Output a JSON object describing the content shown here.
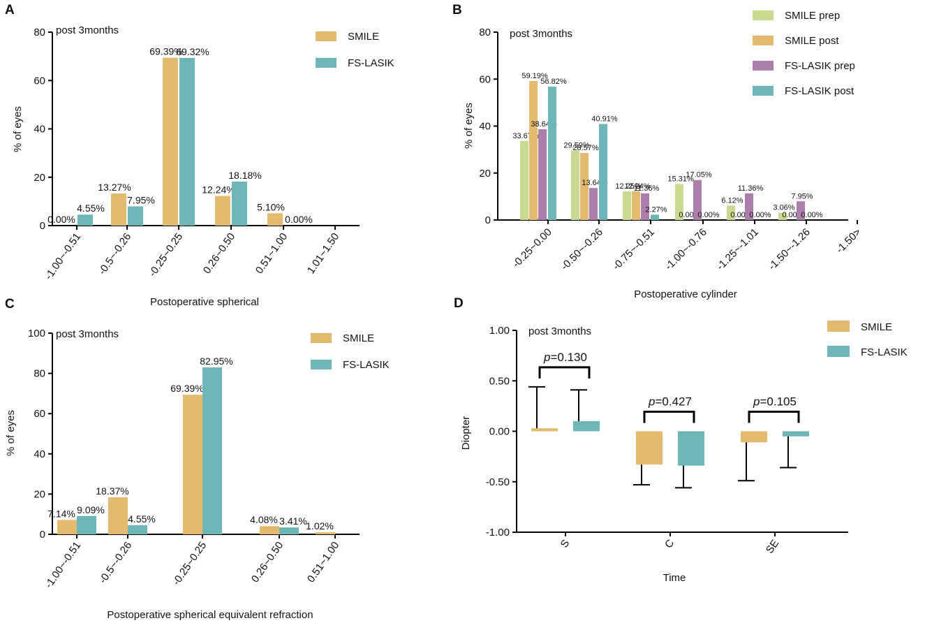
{
  "colors": {
    "smile": "#E3BA6E",
    "fslasik": "#6CB6B8",
    "smile_prep": "#C9D98F",
    "smile_post": "#E3BA6E",
    "fslasik_prep": "#AC7EA9",
    "fslasik_post": "#6CB6B8",
    "axis": "#000000"
  },
  "chart_data": [
    {
      "id": "A",
      "panel_label": "A",
      "type": "bar",
      "title": "post 3months",
      "xlabel": "Postoperative spherical",
      "ylabel": "% of eyes",
      "ylim": [
        0,
        80
      ],
      "yticks": [
        "0",
        "20",
        "40",
        "60",
        "80"
      ],
      "categories": [
        "-1.00~-0.51",
        "-0.5~-0.26",
        "-0.25~0.25",
        "0.26~0.50",
        "0.51~1.00",
        "1.01~1.50"
      ],
      "legend_position": "top-right",
      "series": [
        {
          "name": "SMILE",
          "color_key": "smile",
          "values": [
            0.0,
            13.27,
            69.39,
            12.24,
            5.1,
            null
          ],
          "labels": [
            "0.00%",
            "13.27%",
            "69.39%",
            "12.24%",
            "5.10%",
            null
          ]
        },
        {
          "name": "FS-LASIK",
          "color_key": "fslasik",
          "values": [
            4.55,
            7.95,
            69.32,
            18.18,
            0.0,
            null
          ],
          "labels": [
            "4.55%",
            "7.95%",
            "69.32%",
            "18.18%",
            "0.00%",
            null
          ]
        }
      ]
    },
    {
      "id": "B",
      "panel_label": "B",
      "type": "bar",
      "title": "post 3months",
      "xlabel": "Postoperative cylinder",
      "ylabel": "% of eyes",
      "ylim": [
        0,
        80
      ],
      "yticks": [
        "0",
        "20",
        "40",
        "60",
        "80"
      ],
      "categories": [
        "-0.25~0.00",
        "-0.50~-0.26",
        "-0.75~-0.51",
        "-1.00~-0.76",
        "-1.25~-1.01",
        "-1.50~-1.26",
        "-1.50>"
      ],
      "legend_position": "top-right",
      "series": [
        {
          "name": "SMILE prep",
          "color_key": "smile_prep",
          "values": [
            33.67,
            29.59,
            12.25,
            15.31,
            6.12,
            3.06,
            null
          ],
          "labels": [
            "33.67%",
            "29.59%",
            "12.25%",
            "15.31%",
            "6.12%",
            "3.06%",
            null
          ]
        },
        {
          "name": "SMILE post",
          "color_key": "smile_post",
          "values": [
            59.19,
            28.57,
            12.24,
            0.0,
            0.0,
            0.0,
            null
          ],
          "labels": [
            "59.19%",
            "28.57%",
            "12.24%",
            "0.00%",
            "0.00%",
            "0.00%",
            null
          ]
        },
        {
          "name": "FS-LASIK prep",
          "color_key": "fslasik_prep",
          "values": [
            38.64,
            13.64,
            11.36,
            17.05,
            11.36,
            7.95,
            null
          ],
          "labels": [
            "38.64%",
            "13.64%",
            "11.36%",
            "17.05%",
            "11.36%",
            "7.95%",
            null
          ]
        },
        {
          "name": "FS-LASIK post",
          "color_key": "fslasik_post",
          "values": [
            56.82,
            40.91,
            2.27,
            0.0,
            0.0,
            0.0,
            null
          ],
          "labels": [
            "56.82%",
            "40.91%",
            "2.27%",
            "0.00%",
            "0.00%",
            "0.00%",
            null
          ]
        }
      ]
    },
    {
      "id": "C",
      "panel_label": "C",
      "type": "bar",
      "title": "post 3months",
      "xlabel": "Postoperative spherical equivalent refraction",
      "ylabel": "% of eyes",
      "ylim": [
        0,
        100
      ],
      "yticks": [
        "0",
        "20",
        "40",
        "60",
        "80",
        "100"
      ],
      "categories": [
        "-1.00~-0.51",
        "-0.5~-0.26",
        "-0.25~0.25",
        "0.26~0.50",
        "0.51~1.00"
      ],
      "legend_position": "top-right",
      "series": [
        {
          "name": "SMILE",
          "color_key": "smile",
          "values": [
            7.14,
            18.37,
            69.39,
            4.08,
            1.02
          ],
          "labels": [
            "7.14%",
            "18.37%",
            "69.39%",
            "4.08%",
            "1.02%"
          ]
        },
        {
          "name": "FS-LASIK",
          "color_key": "fslasik",
          "values": [
            9.09,
            4.55,
            82.95,
            3.41,
            null
          ],
          "labels": [
            "9.09%",
            "4.55%",
            "82.95%",
            "3.41%",
            null
          ]
        }
      ]
    },
    {
      "id": "D",
      "panel_label": "D",
      "type": "bar",
      "title": "post 3months",
      "xlabel": "Time",
      "ylabel": "Diopter",
      "ylim": [
        -1.0,
        1.0
      ],
      "yticks": [
        "-1.00",
        "-0.50",
        "0.00",
        "0.50",
        "1.00"
      ],
      "categories": [
        "S",
        "C",
        "SE"
      ],
      "legend_position": "top-right",
      "series": [
        {
          "name": "SMILE",
          "color_key": "smile",
          "values": [
            0.03,
            -0.33,
            -0.11
          ],
          "error_ends": [
            0.44,
            -0.53,
            -0.49
          ]
        },
        {
          "name": "FS-LASIK",
          "color_key": "fslasik",
          "values": [
            0.1,
            -0.34,
            -0.05
          ],
          "error_ends": [
            0.41,
            -0.56,
            -0.36
          ]
        }
      ],
      "significance": [
        {
          "category": "S",
          "p_prefix": "p",
          "p_text": "=0.130"
        },
        {
          "category": "C",
          "p_prefix": "p",
          "p_text": "=0.427"
        },
        {
          "category": "SE",
          "p_prefix": "p",
          "p_text": "=0.105"
        }
      ]
    }
  ]
}
